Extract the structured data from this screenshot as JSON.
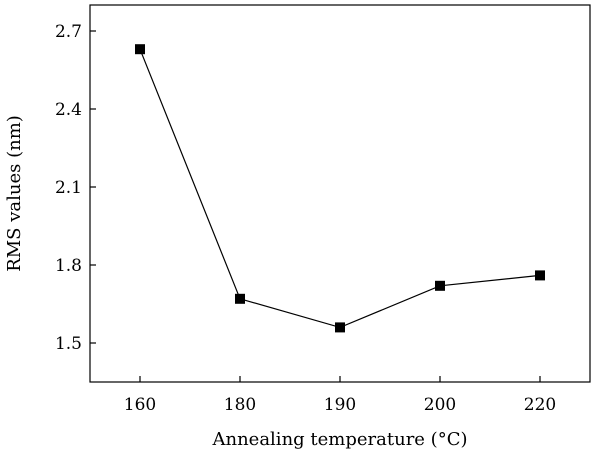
{
  "chart_data": {
    "type": "line",
    "categories": [
      "160",
      "180",
      "190",
      "200",
      "220"
    ],
    "values": [
      2.63,
      1.67,
      1.56,
      1.72,
      1.76
    ],
    "xlabel": "Annealing temperature (°C)",
    "ylabel": "RMS values (nm)",
    "ylim": [
      1.35,
      2.8
    ],
    "yticks": [
      "1.5",
      "1.8",
      "2.1",
      "2.4",
      "2.7"
    ],
    "grid": false,
    "marker": "square",
    "color": "#000000"
  }
}
